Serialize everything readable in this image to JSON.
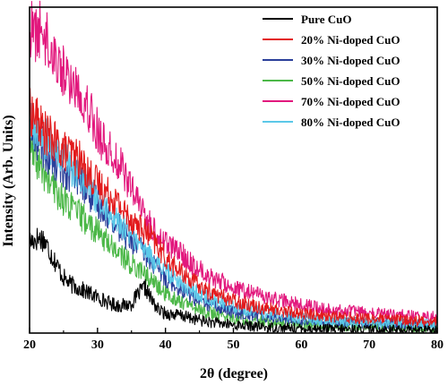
{
  "chart_data": {
    "type": "line",
    "xlabel": "2θ (degree)",
    "ylabel": "Intensity (Arb. Units)",
    "xlim": [
      20,
      80
    ],
    "xticks": [
      20,
      30,
      40,
      50,
      60,
      70,
      80
    ],
    "y_ticks_labeled": false,
    "grid": false,
    "legend_position": "top-right",
    "series": [
      {
        "name": "Pure CuO",
        "color": "#000000",
        "points": [
          [
            20,
            0.28
          ],
          [
            21,
            0.29
          ],
          [
            22,
            0.29
          ],
          [
            23,
            0.25
          ],
          [
            24,
            0.21
          ],
          [
            25,
            0.17
          ],
          [
            26,
            0.15
          ],
          [
            27,
            0.14
          ],
          [
            28,
            0.13
          ],
          [
            29,
            0.12
          ],
          [
            30,
            0.11
          ],
          [
            31,
            0.1
          ],
          [
            32,
            0.09
          ],
          [
            33,
            0.085
          ],
          [
            34,
            0.085
          ],
          [
            35,
            0.09
          ],
          [
            36,
            0.12
          ],
          [
            37,
            0.14
          ],
          [
            38,
            0.1
          ],
          [
            39,
            0.07
          ],
          [
            40,
            0.06
          ],
          [
            42,
            0.055
          ],
          [
            44,
            0.045
          ],
          [
            46,
            0.035
          ],
          [
            50,
            0.025
          ],
          [
            55,
            0.018
          ],
          [
            60,
            0.014
          ],
          [
            65,
            0.012
          ],
          [
            70,
            0.011
          ],
          [
            75,
            0.01
          ],
          [
            80,
            0.009
          ]
        ]
      },
      {
        "name": "20% Ni-doped CuO",
        "color": "#e31a1c",
        "points": [
          [
            20,
            0.68
          ],
          [
            21,
            0.66
          ],
          [
            22,
            0.62
          ],
          [
            23,
            0.6
          ],
          [
            24,
            0.58
          ],
          [
            25,
            0.56
          ],
          [
            26,
            0.55
          ],
          [
            27,
            0.54
          ],
          [
            28,
            0.51
          ],
          [
            29,
            0.48
          ],
          [
            30,
            0.46
          ],
          [
            31,
            0.44
          ],
          [
            32,
            0.42
          ],
          [
            33,
            0.4
          ],
          [
            34,
            0.37
          ],
          [
            35,
            0.35
          ],
          [
            36,
            0.33
          ],
          [
            37,
            0.31
          ],
          [
            38,
            0.29
          ],
          [
            39,
            0.26
          ],
          [
            40,
            0.23
          ],
          [
            42,
            0.19
          ],
          [
            44,
            0.16
          ],
          [
            46,
            0.13
          ],
          [
            50,
            0.1
          ],
          [
            55,
            0.075
          ],
          [
            60,
            0.06
          ],
          [
            65,
            0.05
          ],
          [
            70,
            0.045
          ],
          [
            75,
            0.04
          ],
          [
            80,
            0.035
          ]
        ]
      },
      {
        "name": "30% Ni-doped CuO",
        "color": "#2a3f9a",
        "points": [
          [
            20,
            0.62
          ],
          [
            21,
            0.6
          ],
          [
            22,
            0.57
          ],
          [
            23,
            0.54
          ],
          [
            24,
            0.52
          ],
          [
            25,
            0.5
          ],
          [
            26,
            0.49
          ],
          [
            27,
            0.48
          ],
          [
            28,
            0.45
          ],
          [
            29,
            0.42
          ],
          [
            30,
            0.4
          ],
          [
            31,
            0.38
          ],
          [
            32,
            0.35
          ],
          [
            33,
            0.33
          ],
          [
            34,
            0.3
          ],
          [
            35,
            0.28
          ],
          [
            36,
            0.27
          ],
          [
            37,
            0.24
          ],
          [
            38,
            0.22
          ],
          [
            39,
            0.19
          ],
          [
            40,
            0.17
          ],
          [
            42,
            0.14
          ],
          [
            44,
            0.11
          ],
          [
            46,
            0.09
          ],
          [
            50,
            0.065
          ],
          [
            55,
            0.05
          ],
          [
            60,
            0.04
          ],
          [
            65,
            0.035
          ],
          [
            70,
            0.03
          ],
          [
            75,
            0.028
          ],
          [
            80,
            0.025
          ]
        ]
      },
      {
        "name": "50% Ni-doped CuO",
        "color": "#4cb848",
        "points": [
          [
            20,
            0.56
          ],
          [
            21,
            0.53
          ],
          [
            22,
            0.49
          ],
          [
            23,
            0.46
          ],
          [
            24,
            0.43
          ],
          [
            25,
            0.41
          ],
          [
            26,
            0.39
          ],
          [
            27,
            0.37
          ],
          [
            28,
            0.35
          ],
          [
            29,
            0.33
          ],
          [
            30,
            0.31
          ],
          [
            31,
            0.29
          ],
          [
            32,
            0.27
          ],
          [
            33,
            0.25
          ],
          [
            34,
            0.23
          ],
          [
            35,
            0.21
          ],
          [
            36,
            0.2
          ],
          [
            37,
            0.18
          ],
          [
            38,
            0.16
          ],
          [
            39,
            0.14
          ],
          [
            40,
            0.12
          ],
          [
            42,
            0.1
          ],
          [
            44,
            0.08
          ],
          [
            46,
            0.065
          ],
          [
            50,
            0.045
          ],
          [
            55,
            0.035
          ],
          [
            60,
            0.028
          ],
          [
            65,
            0.022
          ],
          [
            70,
            0.02
          ],
          [
            75,
            0.018
          ],
          [
            80,
            0.016
          ]
        ]
      },
      {
        "name": "70% Ni-doped CuO",
        "color": "#e2187d",
        "points": [
          [
            20,
            0.93
          ],
          [
            21,
            0.92
          ],
          [
            22,
            0.93
          ],
          [
            23,
            0.88
          ],
          [
            24,
            0.84
          ],
          [
            25,
            0.8
          ],
          [
            26,
            0.77
          ],
          [
            27,
            0.75
          ],
          [
            28,
            0.72
          ],
          [
            29,
            0.68
          ],
          [
            30,
            0.62
          ],
          [
            31,
            0.58
          ],
          [
            32,
            0.55
          ],
          [
            33,
            0.53
          ],
          [
            34,
            0.49
          ],
          [
            35,
            0.44
          ],
          [
            36,
            0.4
          ],
          [
            37,
            0.36
          ],
          [
            38,
            0.32
          ],
          [
            39,
            0.3
          ],
          [
            40,
            0.28
          ],
          [
            42,
            0.25
          ],
          [
            44,
            0.21
          ],
          [
            46,
            0.18
          ],
          [
            50,
            0.14
          ],
          [
            55,
            0.11
          ],
          [
            60,
            0.085
          ],
          [
            65,
            0.07
          ],
          [
            70,
            0.06
          ],
          [
            75,
            0.055
          ],
          [
            80,
            0.05
          ]
        ]
      },
      {
        "name": "80% Ni-doped CuO",
        "color": "#5bc8e8",
        "points": [
          [
            20,
            0.64
          ],
          [
            21,
            0.62
          ],
          [
            22,
            0.6
          ],
          [
            23,
            0.58
          ],
          [
            24,
            0.55
          ],
          [
            25,
            0.53
          ],
          [
            26,
            0.51
          ],
          [
            27,
            0.49
          ],
          [
            28,
            0.47
          ],
          [
            29,
            0.44
          ],
          [
            30,
            0.41
          ],
          [
            31,
            0.39
          ],
          [
            32,
            0.36
          ],
          [
            33,
            0.34
          ],
          [
            34,
            0.32
          ],
          [
            35,
            0.3
          ],
          [
            36,
            0.28
          ],
          [
            37,
            0.25
          ],
          [
            38,
            0.23
          ],
          [
            39,
            0.21
          ],
          [
            40,
            0.19
          ],
          [
            42,
            0.16
          ],
          [
            44,
            0.13
          ],
          [
            46,
            0.11
          ],
          [
            50,
            0.08
          ],
          [
            55,
            0.06
          ],
          [
            60,
            0.045
          ],
          [
            65,
            0.037
          ],
          [
            70,
            0.032
          ],
          [
            75,
            0.029
          ],
          [
            80,
            0.026
          ]
        ]
      }
    ]
  }
}
